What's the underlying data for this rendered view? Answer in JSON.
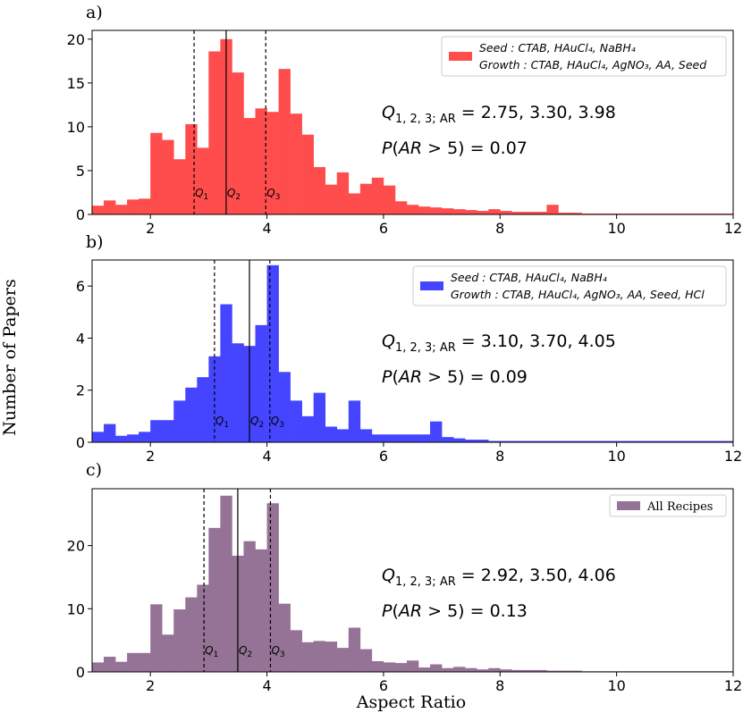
{
  "figure": {
    "ylabel": "Number of Papers",
    "xlabel": "Aspect Ratio"
  },
  "chart_data": [
    {
      "type": "bar",
      "panel_label": "a)",
      "color": "#ff4d4d",
      "xlim": [
        1.0,
        12.0
      ],
      "ylim": [
        0,
        21
      ],
      "xticks": [
        2,
        4,
        6,
        8,
        10,
        12
      ],
      "yticks": [
        0,
        5,
        10,
        15,
        20
      ],
      "bin_start": 1.0,
      "bin_width": 0.2,
      "values": [
        1.0,
        1.6,
        1.1,
        1.7,
        1.8,
        9.3,
        8.5,
        6.3,
        10.3,
        7.6,
        18.6,
        20.0,
        16.2,
        11.0,
        12.1,
        11.7,
        16.6,
        11.5,
        9.1,
        5.4,
        3.4,
        4.8,
        2.4,
        3.5,
        4.2,
        3.3,
        1.5,
        1.1,
        0.9,
        0.8,
        0.7,
        0.6,
        0.5,
        0.4,
        0.6,
        0.4,
        0.3,
        0.3,
        0.3,
        1.1,
        0.2,
        0.2,
        0.1,
        0.1,
        0.1,
        0.1,
        0.1,
        0.1,
        0.1,
        0.1,
        0.1,
        0.1,
        0.1,
        0.1,
        0.1
      ],
      "quartiles": [
        {
          "label": "Q1",
          "sub": "1",
          "value": 2.75,
          "style": "dashed"
        },
        {
          "label": "Q2",
          "sub": "2",
          "value": 3.3,
          "style": "solid"
        },
        {
          "label": "Q3",
          "sub": "3",
          "value": 3.98,
          "style": "dashed"
        }
      ],
      "legend": {
        "position": "upper right",
        "seed_label": "Seed : CTAB, HAuCl₄, NaBH₄",
        "growth_label": "Growth : CTAB, HAuCl₄, AgNO₃, AA, Seed"
      },
      "annotation_quartiles": "Q1, 2, 3; AR = 2.75, 3.30, 3.98",
      "annotation_probability": "P(AR > 5) = 0.07"
    },
    {
      "type": "bar",
      "panel_label": "b)",
      "color": "#4545ff",
      "xlim": [
        1.0,
        12.0
      ],
      "ylim": [
        0,
        7
      ],
      "xticks": [
        2,
        4,
        6,
        8,
        10,
        12
      ],
      "yticks": [
        0,
        2,
        4,
        6
      ],
      "bin_start": 1.0,
      "bin_width": 0.2,
      "values": [
        0.4,
        0.7,
        0.25,
        0.3,
        0.4,
        0.85,
        0.85,
        1.6,
        2.1,
        2.5,
        3.3,
        5.3,
        3.8,
        3.7,
        4.5,
        6.8,
        2.7,
        1.6,
        1.0,
        1.9,
        0.6,
        0.5,
        1.6,
        0.5,
        0.3,
        0.3,
        0.3,
        0.3,
        0.3,
        0.8,
        0.2,
        0.15,
        0.1,
        0.1,
        0.05,
        0.05,
        0.05,
        0.05,
        0.05,
        0.05,
        0.05,
        0.05,
        0.05,
        0.05,
        0.05,
        0.05,
        0.05,
        0.05,
        0.05,
        0.05,
        0.05,
        0.05,
        0.05,
        0.05,
        0.05
      ],
      "quartiles": [
        {
          "label": "Q1",
          "sub": "1",
          "value": 3.1,
          "style": "dashed"
        },
        {
          "label": "Q2",
          "sub": "2",
          "value": 3.7,
          "style": "solid"
        },
        {
          "label": "Q3",
          "sub": "3",
          "value": 4.05,
          "style": "dashed"
        }
      ],
      "legend": {
        "position": "upper right",
        "seed_label": "Seed : CTAB, HAuCl₄, NaBH₄",
        "growth_label": "Growth : CTAB, HAuCl₄, AgNO₃, AA, Seed, HCl"
      },
      "annotation_quartiles": "Q1, 2, 3; AR = 3.10, 3.70, 4.05",
      "annotation_probability": "P(AR > 5) = 0.09"
    },
    {
      "type": "bar",
      "panel_label": "c)",
      "color": "#957396",
      "xlim": [
        1.0,
        12.0
      ],
      "ylim": [
        0,
        29
      ],
      "xticks": [
        2,
        4,
        6,
        8,
        10,
        12
      ],
      "yticks": [
        0,
        10,
        20
      ],
      "bin_start": 1.0,
      "bin_width": 0.2,
      "values": [
        1.5,
        2.4,
        1.6,
        3.0,
        3.0,
        10.7,
        5.9,
        9.9,
        11.8,
        13.8,
        22.8,
        27.9,
        18.4,
        20.7,
        19.4,
        26.7,
        10.8,
        6.6,
        4.7,
        4.9,
        4.8,
        3.8,
        7.0,
        3.6,
        1.7,
        1.5,
        1.4,
        1.8,
        0.7,
        1.2,
        0.6,
        0.8,
        0.6,
        0.4,
        0.6,
        0.4,
        0.3,
        0.3,
        0.3,
        0.2,
        0.2,
        0.2,
        0.1,
        0.1,
        0.1,
        0.1,
        0.1,
        0.1,
        0.1,
        0.1,
        0.1,
        0.1,
        0.1,
        0.1,
        0.1
      ],
      "quartiles": [
        {
          "label": "Q1",
          "sub": "1",
          "value": 2.92,
          "style": "dashed"
        },
        {
          "label": "Q2",
          "sub": "2",
          "value": 3.5,
          "style": "solid"
        },
        {
          "label": "Q3",
          "sub": "3",
          "value": 4.06,
          "style": "dashed"
        }
      ],
      "legend": {
        "position": "upper right",
        "label": "All Recipes"
      },
      "annotation_quartiles": "Q1, 2, 3; AR = 2.92, 3.50, 4.06",
      "annotation_probability": "P(AR > 5) = 0.13"
    }
  ]
}
